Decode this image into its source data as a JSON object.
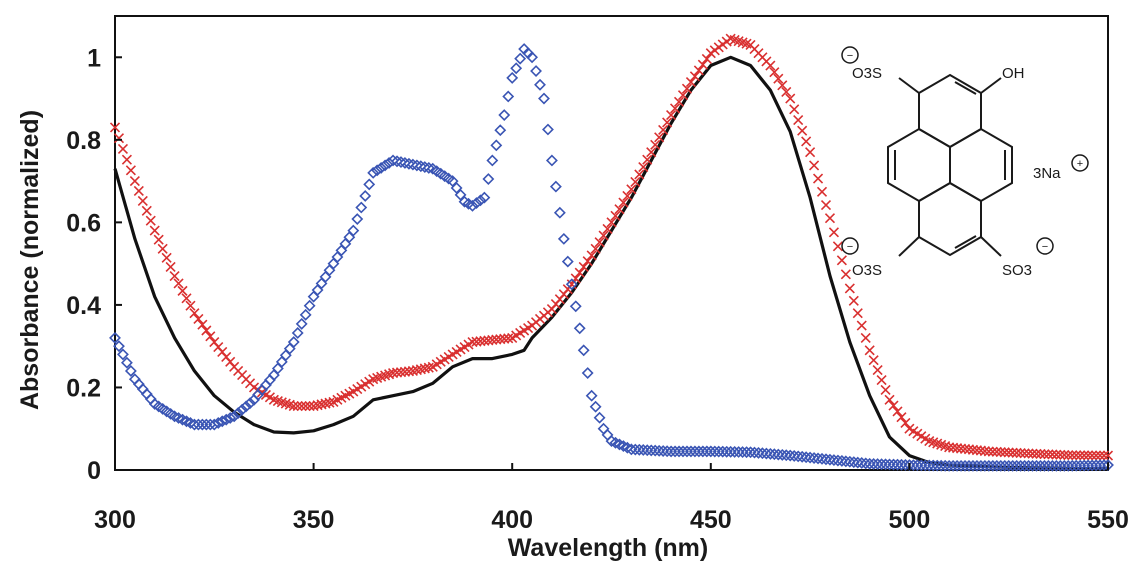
{
  "chart_data": {
    "type": "scatter",
    "xlabel": "Wavelength (nm)",
    "ylabel": "Absorbance (normalized)",
    "xlim": [
      300,
      550
    ],
    "ylim": [
      0,
      1.1
    ],
    "x_ticks": [
      "300",
      "350",
      "400",
      "450",
      "500",
      "550"
    ],
    "y_ticks": [
      "0",
      "0.2",
      "0.4",
      "0.6",
      "0.8",
      "1"
    ],
    "grid": false,
    "legend": "none",
    "series": [
      {
        "marker": "line",
        "color": "#111111",
        "step": 1,
        "points": [
          [
            300,
            0.73
          ],
          [
            305,
            0.56
          ],
          [
            310,
            0.42
          ],
          [
            315,
            0.32
          ],
          [
            320,
            0.24
          ],
          [
            325,
            0.18
          ],
          [
            330,
            0.14
          ],
          [
            335,
            0.11
          ],
          [
            340,
            0.092
          ],
          [
            345,
            0.09
          ],
          [
            350,
            0.095
          ],
          [
            355,
            0.11
          ],
          [
            360,
            0.13
          ],
          [
            365,
            0.17
          ],
          [
            370,
            0.18
          ],
          [
            375,
            0.19
          ],
          [
            380,
            0.21
          ],
          [
            385,
            0.25
          ],
          [
            390,
            0.27
          ],
          [
            395,
            0.27
          ],
          [
            400,
            0.28
          ],
          [
            403,
            0.29
          ],
          [
            405,
            0.32
          ],
          [
            410,
            0.37
          ],
          [
            415,
            0.43
          ],
          [
            420,
            0.5
          ],
          [
            425,
            0.58
          ],
          [
            430,
            0.66
          ],
          [
            435,
            0.75
          ],
          [
            440,
            0.84
          ],
          [
            445,
            0.92
          ],
          [
            450,
            0.98
          ],
          [
            455,
            1.0
          ],
          [
            460,
            0.98
          ],
          [
            465,
            0.92
          ],
          [
            470,
            0.82
          ],
          [
            475,
            0.66
          ],
          [
            480,
            0.47
          ],
          [
            485,
            0.31
          ],
          [
            490,
            0.18
          ],
          [
            495,
            0.08
          ],
          [
            500,
            0.035
          ],
          [
            505,
            0.018
          ],
          [
            510,
            0.012
          ],
          [
            520,
            0.008
          ],
          [
            530,
            0.005
          ],
          [
            540,
            0.004
          ],
          [
            550,
            0.003
          ]
        ]
      },
      {
        "marker": "x",
        "color": "#d93030",
        "step": 1,
        "points": [
          [
            300,
            0.83
          ],
          [
            305,
            0.7
          ],
          [
            310,
            0.58
          ],
          [
            315,
            0.47
          ],
          [
            320,
            0.38
          ],
          [
            325,
            0.31
          ],
          [
            330,
            0.25
          ],
          [
            335,
            0.2
          ],
          [
            340,
            0.17
          ],
          [
            345,
            0.155
          ],
          [
            350,
            0.155
          ],
          [
            355,
            0.165
          ],
          [
            360,
            0.19
          ],
          [
            365,
            0.22
          ],
          [
            370,
            0.235
          ],
          [
            375,
            0.24
          ],
          [
            380,
            0.25
          ],
          [
            385,
            0.28
          ],
          [
            390,
            0.31
          ],
          [
            395,
            0.315
          ],
          [
            400,
            0.32
          ],
          [
            405,
            0.35
          ],
          [
            410,
            0.39
          ],
          [
            415,
            0.45
          ],
          [
            420,
            0.52
          ],
          [
            425,
            0.6
          ],
          [
            430,
            0.68
          ],
          [
            435,
            0.77
          ],
          [
            440,
            0.86
          ],
          [
            445,
            0.94
          ],
          [
            450,
            1.01
          ],
          [
            455,
            1.045
          ],
          [
            460,
            1.03
          ],
          [
            465,
            0.98
          ],
          [
            470,
            0.9
          ],
          [
            475,
            0.77
          ],
          [
            480,
            0.61
          ],
          [
            485,
            0.44
          ],
          [
            490,
            0.29
          ],
          [
            495,
            0.17
          ],
          [
            500,
            0.1
          ],
          [
            505,
            0.07
          ],
          [
            510,
            0.055
          ],
          [
            520,
            0.045
          ],
          [
            530,
            0.04
          ],
          [
            540,
            0.036
          ],
          [
            550,
            0.035
          ]
        ]
      },
      {
        "marker": "diamond",
        "color": "#3a55b4",
        "step": 1,
        "points": [
          [
            300,
            0.32
          ],
          [
            305,
            0.22
          ],
          [
            310,
            0.16
          ],
          [
            315,
            0.13
          ],
          [
            320,
            0.11
          ],
          [
            325,
            0.11
          ],
          [
            330,
            0.13
          ],
          [
            335,
            0.17
          ],
          [
            340,
            0.23
          ],
          [
            345,
            0.31
          ],
          [
            350,
            0.42
          ],
          [
            355,
            0.5
          ],
          [
            360,
            0.58
          ],
          [
            365,
            0.72
          ],
          [
            370,
            0.75
          ],
          [
            375,
            0.74
          ],
          [
            380,
            0.73
          ],
          [
            385,
            0.7
          ],
          [
            388,
            0.65
          ],
          [
            390,
            0.64
          ],
          [
            393,
            0.66
          ],
          [
            395,
            0.75
          ],
          [
            398,
            0.86
          ],
          [
            400,
            0.95
          ],
          [
            403,
            1.02
          ],
          [
            405,
            1.0
          ],
          [
            408,
            0.9
          ],
          [
            410,
            0.75
          ],
          [
            413,
            0.56
          ],
          [
            415,
            0.45
          ],
          [
            418,
            0.29
          ],
          [
            420,
            0.18
          ],
          [
            423,
            0.1
          ],
          [
            425,
            0.07
          ],
          [
            430,
            0.05
          ],
          [
            440,
            0.045
          ],
          [
            450,
            0.045
          ],
          [
            460,
            0.043
          ],
          [
            470,
            0.035
          ],
          [
            480,
            0.025
          ],
          [
            490,
            0.015
          ],
          [
            500,
            0.012
          ],
          [
            510,
            0.01
          ],
          [
            520,
            0.01
          ],
          [
            530,
            0.01
          ],
          [
            540,
            0.01
          ],
          [
            550,
            0.012
          ]
        ]
      }
    ]
  },
  "molecule": {
    "oh": "OH",
    "counter_ion": "3Na",
    "so3_top_left": "O3S",
    "so3_bottom_left": "O3S",
    "so3_bottom_right": "SO3",
    "minus_sign": "−",
    "plus_sign": "+"
  }
}
